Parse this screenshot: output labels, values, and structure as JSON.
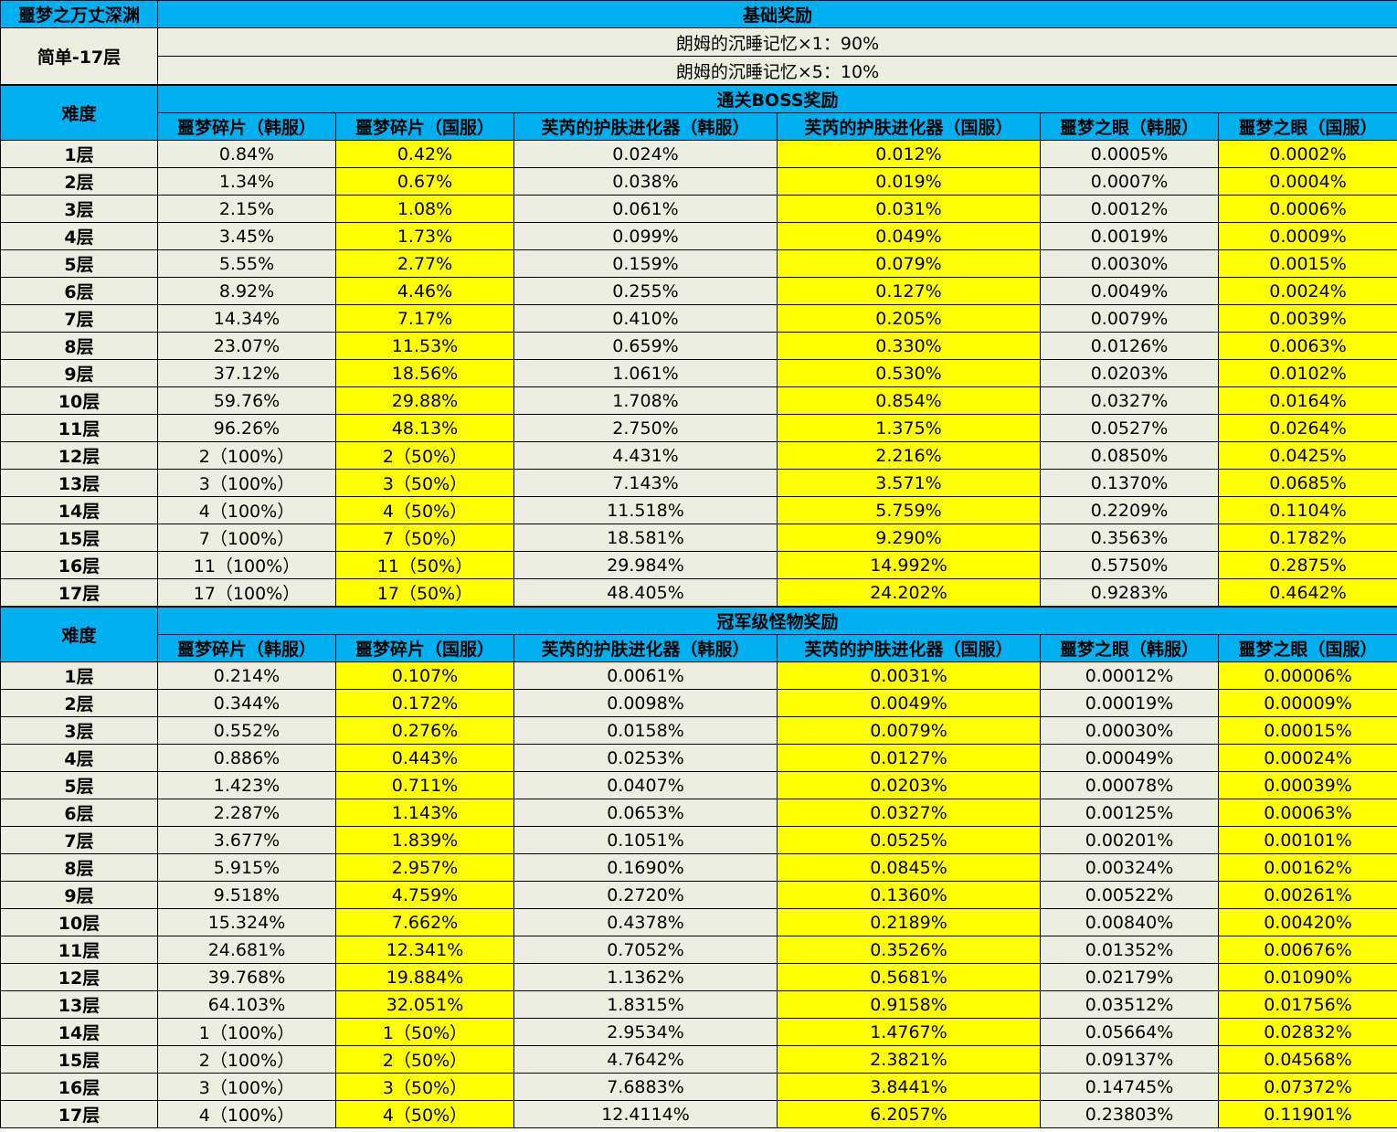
{
  "title": "噩梦之万丈深渊",
  "base": {
    "heading": "基础奖励",
    "mode": "简单-17层",
    "lines": [
      "朗姆的沉睡记忆×1：90%",
      "朗姆的沉睡记忆×5：10%"
    ]
  },
  "columns": [
    "噩梦碎片（韩服）",
    "噩梦碎片（国服）",
    "芙芮的护肤进化器（韩服）",
    "芙芮的护肤进化器（国服）",
    "噩梦之眼（韩服）",
    "噩梦之眼（国服）"
  ],
  "difficulty_label": "难度",
  "boss": {
    "heading": "通关BOSS奖励",
    "rows": [
      {
        "level": "1层",
        "values": [
          "0.84%",
          "0.42%",
          "0.024%",
          "0.012%",
          "0.0005%",
          "0.0002%"
        ]
      },
      {
        "level": "2层",
        "values": [
          "1.34%",
          "0.67%",
          "0.038%",
          "0.019%",
          "0.0007%",
          "0.0004%"
        ]
      },
      {
        "level": "3层",
        "values": [
          "2.15%",
          "1.08%",
          "0.061%",
          "0.031%",
          "0.0012%",
          "0.0006%"
        ]
      },
      {
        "level": "4层",
        "values": [
          "3.45%",
          "1.73%",
          "0.099%",
          "0.049%",
          "0.0019%",
          "0.0009%"
        ]
      },
      {
        "level": "5层",
        "values": [
          "5.55%",
          "2.77%",
          "0.159%",
          "0.079%",
          "0.0030%",
          "0.0015%"
        ]
      },
      {
        "level": "6层",
        "values": [
          "8.92%",
          "4.46%",
          "0.255%",
          "0.127%",
          "0.0049%",
          "0.0024%"
        ]
      },
      {
        "level": "7层",
        "values": [
          "14.34%",
          "7.17%",
          "0.410%",
          "0.205%",
          "0.0079%",
          "0.0039%"
        ]
      },
      {
        "level": "8层",
        "values": [
          "23.07%",
          "11.53%",
          "0.659%",
          "0.330%",
          "0.0126%",
          "0.0063%"
        ]
      },
      {
        "level": "9层",
        "values": [
          "37.12%",
          "18.56%",
          "1.061%",
          "0.530%",
          "0.0203%",
          "0.0102%"
        ]
      },
      {
        "level": "10层",
        "values": [
          "59.76%",
          "29.88%",
          "1.708%",
          "0.854%",
          "0.0327%",
          "0.0164%"
        ]
      },
      {
        "level": "11层",
        "values": [
          "96.26%",
          "48.13%",
          "2.750%",
          "1.375%",
          "0.0527%",
          "0.0264%"
        ]
      },
      {
        "level": "12层",
        "values": [
          "2（100%）",
          "2（50%）",
          "4.431%",
          "2.216%",
          "0.0850%",
          "0.0425%"
        ]
      },
      {
        "level": "13层",
        "values": [
          "3（100%）",
          "3（50%）",
          "7.143%",
          "3.571%",
          "0.1370%",
          "0.0685%"
        ]
      },
      {
        "level": "14层",
        "values": [
          "4（100%）",
          "4（50%）",
          "11.518%",
          "5.759%",
          "0.2209%",
          "0.1104%"
        ]
      },
      {
        "level": "15层",
        "values": [
          "7（100%）",
          "7（50%）",
          "18.581%",
          "9.290%",
          "0.3563%",
          "0.1782%"
        ]
      },
      {
        "level": "16层",
        "values": [
          "11（100%）",
          "11（50%）",
          "29.984%",
          "14.992%",
          "0.5750%",
          "0.2875%"
        ]
      },
      {
        "level": "17层",
        "values": [
          "17（100%）",
          "17（50%）",
          "48.405%",
          "24.202%",
          "0.9283%",
          "0.4642%"
        ]
      }
    ]
  },
  "champion": {
    "heading": "冠军级怪物奖励",
    "rows": [
      {
        "level": "1层",
        "values": [
          "0.214%",
          "0.107%",
          "0.0061%",
          "0.0031%",
          "0.00012%",
          "0.00006%"
        ]
      },
      {
        "level": "2层",
        "values": [
          "0.344%",
          "0.172%",
          "0.0098%",
          "0.0049%",
          "0.00019%",
          "0.00009%"
        ]
      },
      {
        "level": "3层",
        "values": [
          "0.552%",
          "0.276%",
          "0.0158%",
          "0.0079%",
          "0.00030%",
          "0.00015%"
        ]
      },
      {
        "level": "4层",
        "values": [
          "0.886%",
          "0.443%",
          "0.0253%",
          "0.0127%",
          "0.00049%",
          "0.00024%"
        ]
      },
      {
        "level": "5层",
        "values": [
          "1.423%",
          "0.711%",
          "0.0407%",
          "0.0203%",
          "0.00078%",
          "0.00039%"
        ]
      },
      {
        "level": "6层",
        "values": [
          "2.287%",
          "1.143%",
          "0.0653%",
          "0.0327%",
          "0.00125%",
          "0.00063%"
        ]
      },
      {
        "level": "7层",
        "values": [
          "3.677%",
          "1.839%",
          "0.1051%",
          "0.0525%",
          "0.00201%",
          "0.00101%"
        ]
      },
      {
        "level": "8层",
        "values": [
          "5.915%",
          "2.957%",
          "0.1690%",
          "0.0845%",
          "0.00324%",
          "0.00162%"
        ]
      },
      {
        "level": "9层",
        "values": [
          "9.518%",
          "4.759%",
          "0.2720%",
          "0.1360%",
          "0.00522%",
          "0.00261%"
        ]
      },
      {
        "level": "10层",
        "values": [
          "15.324%",
          "7.662%",
          "0.4378%",
          "0.2189%",
          "0.00840%",
          "0.00420%"
        ]
      },
      {
        "level": "11层",
        "values": [
          "24.681%",
          "12.341%",
          "0.7052%",
          "0.3526%",
          "0.01352%",
          "0.00676%"
        ]
      },
      {
        "level": "12层",
        "values": [
          "39.768%",
          "19.884%",
          "1.1362%",
          "0.5681%",
          "0.02179%",
          "0.01090%"
        ]
      },
      {
        "level": "13层",
        "values": [
          "64.103%",
          "32.051%",
          "1.8315%",
          "0.9158%",
          "0.03512%",
          "0.01756%"
        ]
      },
      {
        "level": "14层",
        "values": [
          "1（100%）",
          "1（50%）",
          "2.9534%",
          "1.4767%",
          "0.05664%",
          "0.02832%"
        ]
      },
      {
        "level": "15层",
        "values": [
          "2（100%）",
          "2（50%）",
          "4.7642%",
          "2.3821%",
          "0.09137%",
          "0.04568%"
        ]
      },
      {
        "level": "16层",
        "values": [
          "3（100%）",
          "3（50%）",
          "7.6883%",
          "3.8441%",
          "0.14745%",
          "0.07372%"
        ]
      },
      {
        "level": "17层",
        "values": [
          "4（100%）",
          "4（50%）",
          "12.4114%",
          "6.2057%",
          "0.23803%",
          "0.11901%"
        ]
      }
    ]
  },
  "colors": {
    "header_blue": "#00b0f0",
    "highlight_yellow": "#ffff00",
    "cell_cream": "#eceedf"
  }
}
